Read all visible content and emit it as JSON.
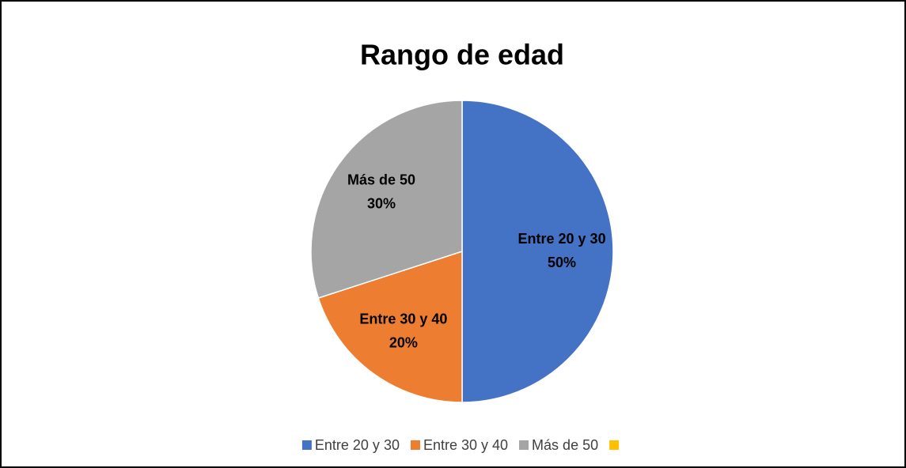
{
  "chart_data": {
    "type": "pie",
    "title": "Rango de edad",
    "categories": [
      "Entre 20 y 30",
      "Entre 30 y 40",
      "Más de 50",
      null
    ],
    "values": [
      50,
      20,
      30,
      0
    ],
    "value_labels": [
      "50%",
      "20%",
      "30%",
      null
    ],
    "colors": [
      "#4472c4",
      "#ed7d31",
      "#a5a5a5",
      "#ffc000"
    ],
    "legend": "bottom"
  }
}
